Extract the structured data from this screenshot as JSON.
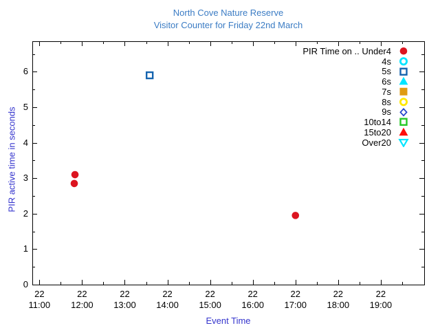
{
  "window": {
    "background": "#ffffff"
  },
  "chart_data": {
    "type": "scatter",
    "title": "North Cove Nature Reserve",
    "subtitle": "Visitor Counter for Friday 22nd March",
    "xlabel": "Event Time",
    "ylabel": "PIR active time in seconds",
    "title_color": "#3b7cc4",
    "axis_label_color": "#3535cd",
    "tick_label_color": "#000000",
    "border_color": "#000000",
    "grid": false,
    "x_axis": {
      "type": "time-of-day",
      "range": [
        "10:50",
        "20:01"
      ],
      "tick_day_label": "22",
      "major_ticks": [
        "11:00",
        "12:00",
        "13:00",
        "14:00",
        "15:00",
        "16:00",
        "17:00",
        "18:00",
        "19:00"
      ],
      "minor_ticks": [
        "11:30",
        "12:30",
        "13:30",
        "14:30",
        "15:30",
        "16:30",
        "17:30",
        "18:30",
        "19:30"
      ]
    },
    "y_axis": {
      "range": [
        0,
        6.86
      ],
      "major_ticks": [
        0,
        1,
        2,
        3,
        4,
        5,
        6
      ],
      "minor_ticks": [
        0.5,
        1.5,
        2.5,
        3.5,
        4.5,
        5.5,
        6.5
      ]
    },
    "legend": {
      "position": "top-right-inside",
      "entries": [
        {
          "label": "PIR Time on .. Under4",
          "marker": "circle-filled",
          "color": "#dc1420"
        },
        {
          "label": "4s",
          "marker": "circle-open",
          "color": "#00e5ff"
        },
        {
          "label": "5s",
          "marker": "square-open",
          "color": "#1564af"
        },
        {
          "label": "6s",
          "marker": "triangle-up-filled",
          "color": "#00e5ff"
        },
        {
          "label": "7s",
          "marker": "square-filled",
          "color": "#df9b12"
        },
        {
          "label": "8s",
          "marker": "circle-open",
          "color": "#ffe800"
        },
        {
          "label": "9s",
          "marker": "diamond-open",
          "color": "#2244cc"
        },
        {
          "label": "10to14",
          "marker": "square-open",
          "color": "#26c826"
        },
        {
          "label": "15to20",
          "marker": "triangle-up-filled",
          "color": "#ff0d0d"
        },
        {
          "label": "Over20",
          "marker": "triangle-down-open",
          "color": "#00e5ff"
        }
      ]
    },
    "series": [
      {
        "name": "PIR Time on .. Under4",
        "marker": "circle-filled",
        "color": "#dc1420",
        "points": [
          [
            "11:50",
            3.1
          ],
          [
            "11:49",
            2.85
          ],
          [
            "17:00",
            1.95
          ]
        ]
      },
      {
        "name": "5s",
        "marker": "square-open",
        "color": "#1564af",
        "points": [
          [
            "13:35",
            5.9
          ]
        ]
      }
    ]
  }
}
